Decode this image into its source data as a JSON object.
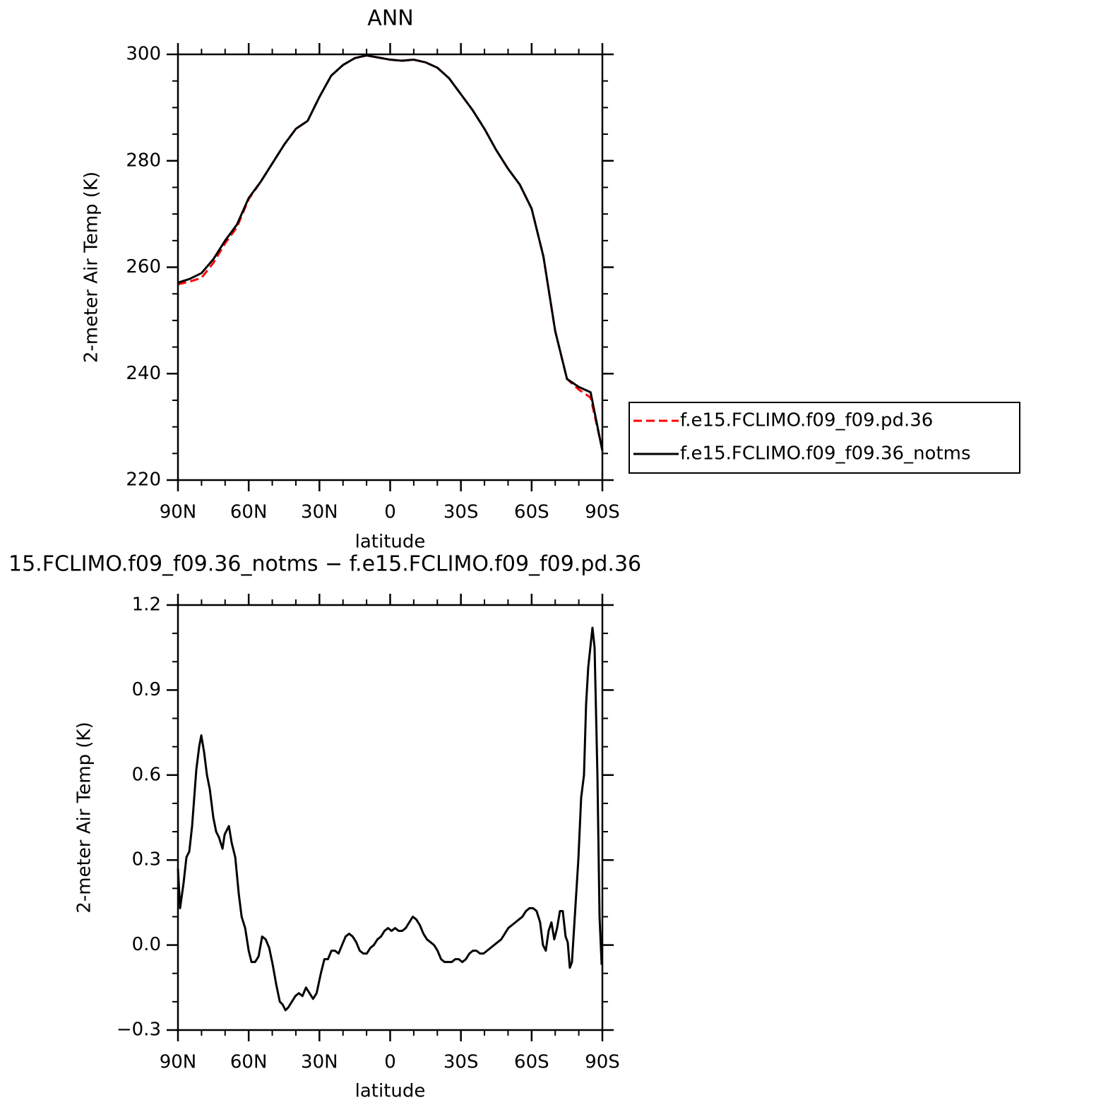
{
  "chart_data": [
    {
      "type": "line",
      "title": "ANN",
      "xlabel": "latitude",
      "ylabel": "2-meter Air Temp (K)",
      "xlim": [
        90,
        -90
      ],
      "xticks": [
        {
          "value": 90,
          "label": "90N"
        },
        {
          "value": 60,
          "label": "60N"
        },
        {
          "value": 30,
          "label": "30N"
        },
        0,
        {
          "value": -30,
          "label": "30S"
        },
        {
          "value": -60,
          "label": "60S"
        },
        {
          "value": -90,
          "label": "90S"
        }
      ],
      "xminorticks": [
        80,
        70,
        50,
        40,
        20,
        10,
        -10,
        -20,
        -40,
        -50,
        -70,
        -80
      ],
      "ylim": [
        220,
        300
      ],
      "yticks": [
        220,
        240,
        260,
        280,
        300
      ],
      "yminorticks": [
        225,
        230,
        235,
        245,
        250,
        255,
        265,
        270,
        275,
        285,
        290,
        295
      ],
      "legend": "outside-right",
      "x": [
        90,
        85,
        80,
        75,
        70,
        65,
        60,
        55,
        50,
        45,
        40,
        35,
        30,
        25,
        20,
        15,
        10,
        5,
        0,
        -5,
        -10,
        -15,
        -20,
        -25,
        -30,
        -35,
        -40,
        -45,
        -50,
        -55,
        -60,
        -65,
        -70,
        -75,
        -80,
        -85,
        -90
      ],
      "series": [
        {
          "name": "f.e15.FCLIMO.f09_f09.pd.36",
          "color": "#ff0000",
          "linestyle": "dashed",
          "values": [
            256.8,
            257.3,
            258,
            260.8,
            264.5,
            267.5,
            272.8,
            276,
            279.5,
            283,
            286,
            287.5,
            292,
            296,
            298,
            299.3,
            299.8,
            299.4,
            299,
            298.8,
            299,
            298.5,
            297.5,
            295.5,
            292.5,
            289.5,
            286,
            282,
            278.5,
            275.5,
            271,
            262,
            248,
            239,
            237,
            235.5,
            225.7
          ]
        },
        {
          "name": "f.e15.FCLIMO.f09_f09.36_notms",
          "color": "#000000",
          "linestyle": "solid",
          "values": [
            257.1,
            257.8,
            258.9,
            261.5,
            265,
            268,
            273,
            276,
            279.5,
            283,
            286,
            287.5,
            292,
            296,
            298,
            299.3,
            299.8,
            299.4,
            299,
            298.8,
            299,
            298.5,
            297.5,
            295.5,
            292.5,
            289.5,
            286,
            282,
            278.5,
            275.5,
            271,
            262,
            248,
            239,
            237.5,
            236.5,
            225.5
          ]
        }
      ]
    },
    {
      "type": "line",
      "title": "15.FCLIMO.f09_f09.36_notms − f.e15.FCLIMO.f09_f09.pd.36",
      "xlabel": "latitude",
      "ylabel": "2-meter Air Temp (K)",
      "xlim": [
        90,
        -90
      ],
      "xticks": [
        {
          "value": 90,
          "label": "90N"
        },
        {
          "value": 60,
          "label": "60N"
        },
        {
          "value": 30,
          "label": "30N"
        },
        0,
        {
          "value": -30,
          "label": "30S"
        },
        {
          "value": -60,
          "label": "60S"
        },
        {
          "value": -90,
          "label": "90S"
        }
      ],
      "xminorticks": [
        80,
        70,
        50,
        40,
        20,
        10,
        -10,
        -20,
        -40,
        -50,
        -70,
        -80
      ],
      "ylim": [
        -0.3,
        1.2
      ],
      "yticks": [
        {
          "value": -0.3,
          "label": "−0.3"
        },
        {
          "value": 0,
          "label": "0.0"
        },
        0.3,
        0.6,
        0.9,
        1.2
      ],
      "yminorticks": [
        -0.2,
        -0.1,
        0.1,
        0.2,
        0.4,
        0.5,
        0.7,
        0.8,
        1.0,
        1.1
      ],
      "x": [
        90,
        89.1,
        87.6,
        86.4,
        85.2,
        84,
        82.2,
        81,
        80.1,
        78.9,
        77.7,
        76.5,
        75,
        73.8,
        72.6,
        71.1,
        70.2,
        68.4,
        67.2,
        65.7,
        64.2,
        63,
        61.5,
        60,
        58.8,
        57.3,
        55.8,
        54.3,
        52.8,
        51.3,
        49.8,
        48.3,
        46.8,
        45.6,
        44.4,
        43.2,
        41.7,
        40.2,
        38.7,
        37.2,
        35.7,
        34.2,
        32.7,
        31.2,
        29.4,
        27.9,
        26.4,
        24.9,
        23.4,
        21.9,
        20.4,
        18.9,
        17.4,
        15.9,
        14.4,
        12.9,
        11.4,
        9.9,
        8.4,
        6.9,
        5.4,
        3.9,
        2.4,
        0.9,
        -0.6,
        -2.1,
        -3.6,
        -5.1,
        -6.6,
        -8.1,
        -9.6,
        -11.1,
        -12.6,
        -14.1,
        -15.6,
        -17.1,
        -18.6,
        -20.1,
        -21.6,
        -23.1,
        -24.6,
        -26.1,
        -27.6,
        -29.1,
        -30.6,
        -32.1,
        -33.6,
        -35.1,
        -36.6,
        -38.1,
        -39.6,
        -41.1,
        -42.6,
        -44.1,
        -45.6,
        -47.1,
        -48.6,
        -50.1,
        -51.6,
        -53.1,
        -54.6,
        -56.1,
        -57.6,
        -59.1,
        -60.6,
        -62.1,
        -63.6,
        -64.8,
        -66,
        -67.2,
        -68.4,
        -69.6,
        -70.8,
        -72,
        -73.2,
        -74.4,
        -75.3,
        -76.2,
        -77.1,
        -78.3,
        -79.8,
        -81,
        -82.2,
        -83.1,
        -84,
        -84.9,
        -85.8,
        -86.7,
        -87.9,
        -88.8,
        -89.7
      ],
      "series": [
        {
          "color": "#000000",
          "linestyle": "solid",
          "values": [
            0.27,
            0.13,
            0.22,
            0.31,
            0.33,
            0.42,
            0.62,
            0.7,
            0.74,
            0.68,
            0.6,
            0.55,
            0.45,
            0.4,
            0.38,
            0.34,
            0.39,
            0.42,
            0.36,
            0.31,
            0.18,
            0.1,
            0.06,
            -0.02,
            -0.06,
            -0.06,
            -0.04,
            0.03,
            0.02,
            -0.01,
            -0.07,
            -0.14,
            -0.2,
            -0.21,
            -0.23,
            -0.22,
            -0.2,
            -0.18,
            -0.17,
            -0.18,
            -0.15,
            -0.17,
            -0.19,
            -0.17,
            -0.1,
            -0.05,
            -0.05,
            -0.02,
            -0.02,
            -0.03,
            0,
            0.03,
            0.04,
            0.03,
            0.01,
            -0.02,
            -0.03,
            -0.03,
            -0.01,
            0,
            0.02,
            0.03,
            0.05,
            0.06,
            0.05,
            0.06,
            0.05,
            0.05,
            0.06,
            0.08,
            0.1,
            0.09,
            0.07,
            0.04,
            0.02,
            0.01,
            0,
            -0.02,
            -0.05,
            -0.06,
            -0.06,
            -0.06,
            -0.05,
            -0.05,
            -0.06,
            -0.05,
            -0.03,
            -0.02,
            -0.02,
            -0.03,
            -0.03,
            -0.02,
            -0.01,
            0,
            0.01,
            0.02,
            0.04,
            0.06,
            0.07,
            0.08,
            0.09,
            0.1,
            0.12,
            0.13,
            0.13,
            0.12,
            0.08,
            0,
            -0.02,
            0.05,
            0.08,
            0.02,
            0.06,
            0.12,
            0.12,
            0.03,
            0.01,
            -0.08,
            -0.06,
            0.1,
            0.3,
            0.52,
            0.6,
            0.85,
            0.98,
            1.05,
            1.12,
            1.05,
            0.6,
            0.1,
            -0.07
          ]
        }
      ]
    }
  ]
}
